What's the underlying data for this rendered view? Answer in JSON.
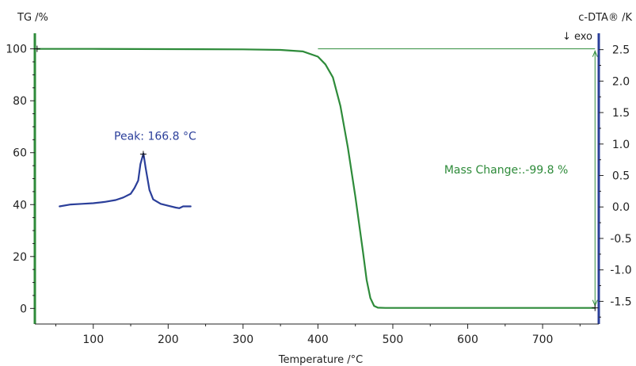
{
  "chart_data": {
    "type": "line",
    "xlabel": "Temperature /°C",
    "ylabel_left": "TG /%",
    "ylabel_right": "c-DTA® /K",
    "exo_label": "↓ exo",
    "xlim": [
      22,
      775
    ],
    "ylim_left": [
      -6,
      106
    ],
    "ylim_right": [
      -1.86,
      2.76
    ],
    "x_ticks": [
      100,
      200,
      300,
      400,
      500,
      600,
      700
    ],
    "y_left_ticks": [
      0,
      20,
      40,
      60,
      80,
      100
    ],
    "y_right_ticks": [
      "2.5",
      "2.0",
      "1.5",
      "1.0",
      "0.5",
      "0.0",
      "-0.5",
      "-1.0",
      "-1.5"
    ],
    "colors": {
      "tg": "#2e8b3a",
      "dta": "#2b3f9a",
      "axis_left": "#2e8b3a",
      "axis_right": "#2b3f9a"
    },
    "series": [
      {
        "axis": "left",
        "color": "#2e8b3a",
        "points": [
          [
            25,
            100
          ],
          [
            100,
            100
          ],
          [
            200,
            99.9
          ],
          [
            300,
            99.8
          ],
          [
            350,
            99.6
          ],
          [
            380,
            99
          ],
          [
            400,
            97
          ],
          [
            410,
            94
          ],
          [
            420,
            89
          ],
          [
            430,
            78
          ],
          [
            440,
            62
          ],
          [
            450,
            43
          ],
          [
            460,
            22
          ],
          [
            465,
            11
          ],
          [
            470,
            4
          ],
          [
            475,
            1
          ],
          [
            480,
            0.3
          ],
          [
            490,
            0.2
          ],
          [
            600,
            0.2
          ],
          [
            700,
            0.2
          ],
          [
            770,
            0.2
          ]
        ]
      },
      {
        "axis": "right",
        "color": "#2b3f9a",
        "points": [
          [
            55,
            0.01
          ],
          [
            70,
            0.04
          ],
          [
            85,
            0.05
          ],
          [
            100,
            0.06
          ],
          [
            115,
            0.08
          ],
          [
            130,
            0.11
          ],
          [
            140,
            0.15
          ],
          [
            150,
            0.21
          ],
          [
            155,
            0.3
          ],
          [
            160,
            0.42
          ],
          [
            163,
            0.68
          ],
          [
            167,
            0.85
          ],
          [
            170,
            0.62
          ],
          [
            175,
            0.27
          ],
          [
            180,
            0.12
          ],
          [
            190,
            0.05
          ],
          [
            200,
            0.02
          ],
          [
            210,
            -0.01
          ],
          [
            215,
            -0.02
          ],
          [
            220,
            0.01
          ],
          [
            230,
            0.01
          ]
        ]
      }
    ],
    "annotations": {
      "peak": {
        "label": "Peak: 166.8 °C",
        "x": 166.8,
        "y": 0.84
      },
      "mass_change": {
        "label": "Mass Change:.-99.8 %",
        "x": 770,
        "y_from": 100,
        "y_to": 0.2
      }
    },
    "grid": false,
    "legend": "none"
  }
}
